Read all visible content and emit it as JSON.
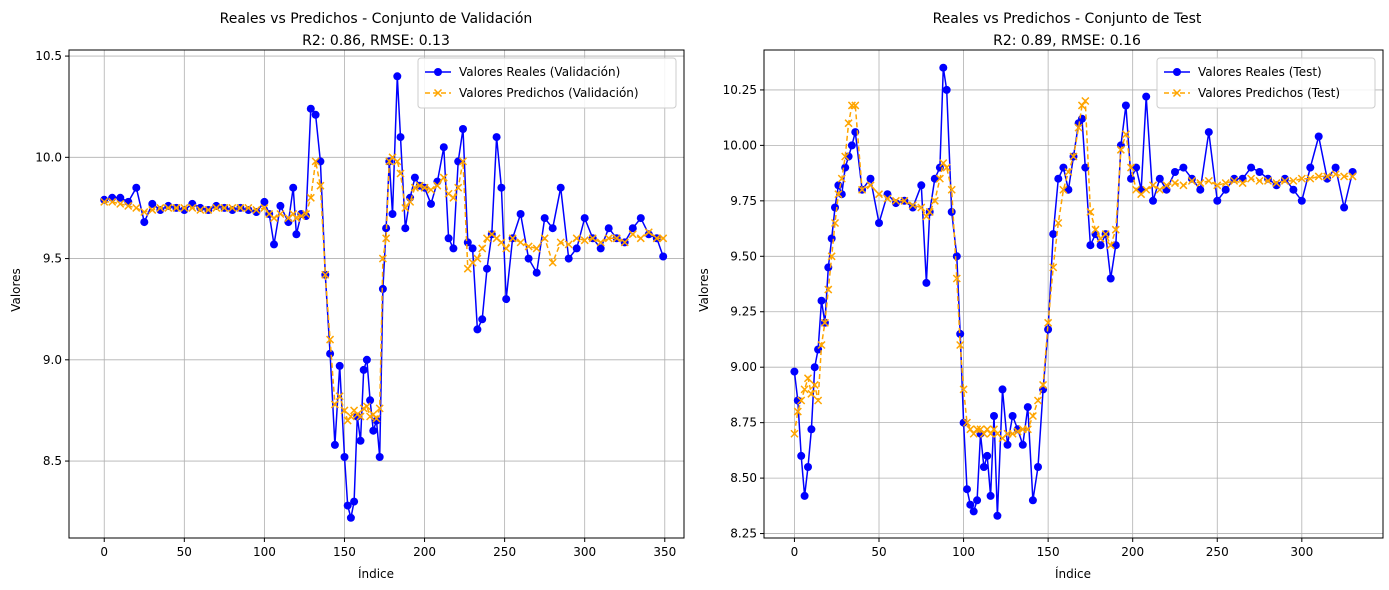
{
  "colors": {
    "real": "#0000ff",
    "pred": "#ffa500",
    "grid": "#b0b0b0",
    "frame": "#000000"
  },
  "chart_data": [
    {
      "type": "line",
      "title": "Reales vs Predichos - Conjunto de Validación",
      "subtitle": "R2: 0.86, RMSE: 0.13",
      "xlabel": "Índice",
      "ylabel": "Valores",
      "xlim": [
        -22,
        362
      ],
      "ylim": [
        8.12,
        10.53
      ],
      "xticks": [
        0,
        50,
        100,
        150,
        200,
        250,
        300,
        350
      ],
      "yticks": [
        8.5,
        9.0,
        9.5,
        10.0,
        10.5
      ],
      "ytick_labels": [
        "8.5",
        "9.0",
        "9.5",
        "10.0",
        "10.5"
      ],
      "grid": true,
      "legend_position": "upper right",
      "series": [
        {
          "name": "Valores Reales (Validación)",
          "marker": "circle",
          "style": "solid",
          "x": [
            0,
            5,
            10,
            15,
            20,
            25,
            30,
            35,
            40,
            45,
            50,
            55,
            60,
            65,
            70,
            75,
            80,
            85,
            90,
            95,
            100,
            103,
            106,
            110,
            115,
            118,
            120,
            123,
            126,
            129,
            132,
            135,
            138,
            141,
            144,
            147,
            150,
            152,
            154,
            156,
            158,
            160,
            162,
            164,
            166,
            168,
            170,
            172,
            174,
            176,
            178,
            180,
            183,
            185,
            188,
            191,
            194,
            197,
            200,
            204,
            208,
            212,
            215,
            218,
            221,
            224,
            227,
            230,
            233,
            236,
            239,
            242,
            245,
            248,
            251,
            255,
            260,
            265,
            270,
            275,
            280,
            285,
            290,
            295,
            300,
            305,
            310,
            315,
            320,
            325,
            330,
            335,
            340,
            345,
            349
          ],
          "y": [
            9.79,
            9.8,
            9.8,
            9.78,
            9.85,
            9.68,
            9.77,
            9.74,
            9.76,
            9.75,
            9.74,
            9.77,
            9.75,
            9.74,
            9.76,
            9.75,
            9.74,
            9.75,
            9.74,
            9.73,
            9.78,
            9.72,
            9.57,
            9.76,
            9.68,
            9.85,
            9.62,
            9.72,
            9.71,
            10.24,
            10.21,
            9.98,
            9.42,
            9.03,
            8.58,
            8.97,
            8.52,
            8.28,
            8.22,
            8.3,
            8.72,
            8.6,
            8.95,
            9.0,
            8.8,
            8.65,
            8.7,
            8.52,
            9.35,
            9.65,
            9.98,
            9.72,
            10.4,
            10.1,
            9.65,
            9.8,
            9.9,
            9.86,
            9.85,
            9.77,
            9.88,
            10.05,
            9.6,
            9.55,
            9.98,
            10.14,
            9.58,
            9.55,
            9.15,
            9.2,
            9.45,
            9.62,
            10.1,
            9.85,
            9.3,
            9.6,
            9.72,
            9.5,
            9.43,
            9.7,
            9.65,
            9.85,
            9.5,
            9.55,
            9.7,
            9.6,
            9.55,
            9.65,
            9.6,
            9.58,
            9.65,
            9.7,
            9.62,
            9.6,
            9.51
          ]
        },
        {
          "name": "Valores Predichos (Validación)",
          "marker": "x",
          "style": "dashed",
          "x": [
            0,
            5,
            10,
            15,
            20,
            25,
            30,
            35,
            40,
            45,
            50,
            55,
            60,
            65,
            70,
            75,
            80,
            85,
            90,
            95,
            100,
            103,
            106,
            110,
            115,
            118,
            120,
            123,
            126,
            129,
            132,
            135,
            138,
            141,
            144,
            147,
            150,
            152,
            154,
            156,
            158,
            160,
            162,
            164,
            166,
            168,
            170,
            172,
            174,
            176,
            178,
            180,
            183,
            185,
            188,
            191,
            194,
            197,
            200,
            204,
            208,
            212,
            215,
            218,
            221,
            224,
            227,
            230,
            233,
            236,
            239,
            242,
            245,
            248,
            251,
            255,
            260,
            265,
            270,
            275,
            280,
            285,
            290,
            295,
            300,
            305,
            310,
            315,
            320,
            325,
            330,
            335,
            340,
            345,
            349
          ],
          "y": [
            9.78,
            9.78,
            9.77,
            9.76,
            9.75,
            9.73,
            9.74,
            9.75,
            9.75,
            9.75,
            9.75,
            9.75,
            9.74,
            9.74,
            9.75,
            9.75,
            9.75,
            9.75,
            9.75,
            9.74,
            9.75,
            9.72,
            9.7,
            9.72,
            9.7,
            9.72,
            9.7,
            9.71,
            9.72,
            9.8,
            9.98,
            9.86,
            9.42,
            9.1,
            8.78,
            8.82,
            8.75,
            8.7,
            8.72,
            8.75,
            8.73,
            8.72,
            8.76,
            8.77,
            8.72,
            8.73,
            8.71,
            8.76,
            9.5,
            9.6,
            9.98,
            10.0,
            9.98,
            9.92,
            9.75,
            9.78,
            9.85,
            9.86,
            9.85,
            9.84,
            9.86,
            9.9,
            9.82,
            9.8,
            9.85,
            9.98,
            9.45,
            9.48,
            9.5,
            9.55,
            9.6,
            9.62,
            9.6,
            9.58,
            9.55,
            9.6,
            9.58,
            9.56,
            9.55,
            9.6,
            9.48,
            9.58,
            9.57,
            9.6,
            9.59,
            9.6,
            9.58,
            9.6,
            9.6,
            9.58,
            9.62,
            9.6,
            9.63,
            9.6,
            9.6
          ]
        }
      ]
    },
    {
      "type": "line",
      "title": "Reales vs Predichos - Conjunto de Test",
      "subtitle": "R2: 0.89, RMSE: 0.16",
      "xlabel": "Índice",
      "ylabel": "Valores",
      "xlim": [
        -18,
        348
      ],
      "ylim": [
        8.23,
        10.43
      ],
      "xticks": [
        0,
        50,
        100,
        150,
        200,
        250,
        300
      ],
      "yticks": [
        8.25,
        8.5,
        8.75,
        9.0,
        9.25,
        9.5,
        9.75,
        10.0,
        10.25
      ],
      "ytick_labels": [
        "8.25",
        "8.50",
        "8.75",
        "9.00",
        "9.25",
        "9.50",
        "9.75",
        "10.00",
        "10.25"
      ],
      "grid": true,
      "legend_position": "upper right",
      "series": [
        {
          "name": "Valores Reales (Test)",
          "marker": "circle",
          "style": "solid",
          "x": [
            0,
            2,
            4,
            6,
            8,
            10,
            12,
            14,
            16,
            18,
            20,
            22,
            24,
            26,
            28,
            30,
            32,
            34,
            36,
            40,
            45,
            50,
            55,
            60,
            65,
            70,
            75,
            78,
            80,
            83,
            86,
            88,
            90,
            93,
            96,
            98,
            100,
            102,
            104,
            106,
            108,
            110,
            112,
            114,
            116,
            118,
            120,
            123,
            126,
            129,
            132,
            135,
            138,
            141,
            144,
            147,
            150,
            153,
            156,
            159,
            162,
            165,
            168,
            170,
            172,
            175,
            178,
            181,
            184,
            187,
            190,
            193,
            196,
            199,
            202,
            205,
            208,
            212,
            216,
            220,
            225,
            230,
            235,
            240,
            245,
            250,
            255,
            260,
            265,
            270,
            275,
            280,
            285,
            290,
            295,
            300,
            305,
            310,
            315,
            320,
            325,
            330
          ],
          "y": [
            8.98,
            8.85,
            8.6,
            8.42,
            8.55,
            8.72,
            9.0,
            9.08,
            9.3,
            9.2,
            9.45,
            9.58,
            9.72,
            9.82,
            9.78,
            9.9,
            9.95,
            10.0,
            10.06,
            9.8,
            9.85,
            9.65,
            9.78,
            9.74,
            9.75,
            9.72,
            9.82,
            9.38,
            9.7,
            9.85,
            9.9,
            10.35,
            10.25,
            9.7,
            9.5,
            9.15,
            8.75,
            8.45,
            8.38,
            8.35,
            8.4,
            8.7,
            8.55,
            8.6,
            8.42,
            8.78,
            8.33,
            8.9,
            8.65,
            8.78,
            8.72,
            8.65,
            8.82,
            8.4,
            8.55,
            8.9,
            9.17,
            9.6,
            9.85,
            9.9,
            9.8,
            9.95,
            10.1,
            10.12,
            9.9,
            9.55,
            9.6,
            9.55,
            9.6,
            9.4,
            9.55,
            10.0,
            10.18,
            9.85,
            9.9,
            9.8,
            10.22,
            9.75,
            9.85,
            9.8,
            9.88,
            9.9,
            9.85,
            9.8,
            10.06,
            9.75,
            9.8,
            9.85,
            9.85,
            9.9,
            9.88,
            9.85,
            9.82,
            9.85,
            9.8,
            9.75,
            9.9,
            10.04,
            9.85,
            9.9,
            9.72,
            9.88
          ]
        },
        {
          "name": "Valores Predichos (Test)",
          "marker": "x",
          "style": "dashed",
          "x": [
            0,
            2,
            4,
            6,
            8,
            10,
            12,
            14,
            16,
            18,
            20,
            22,
            24,
            26,
            28,
            30,
            32,
            34,
            36,
            40,
            45,
            50,
            55,
            60,
            65,
            70,
            75,
            78,
            80,
            83,
            86,
            88,
            90,
            93,
            96,
            98,
            100,
            102,
            104,
            106,
            108,
            110,
            112,
            114,
            116,
            118,
            120,
            123,
            126,
            129,
            132,
            135,
            138,
            141,
            144,
            147,
            150,
            153,
            156,
            159,
            162,
            165,
            168,
            170,
            172,
            175,
            178,
            181,
            184,
            187,
            190,
            193,
            196,
            199,
            202,
            205,
            208,
            212,
            216,
            220,
            225,
            230,
            235,
            240,
            245,
            250,
            255,
            260,
            265,
            270,
            275,
            280,
            285,
            290,
            295,
            300,
            305,
            310,
            315,
            320,
            325,
            330
          ],
          "y": [
            8.7,
            8.8,
            8.85,
            8.9,
            8.95,
            8.88,
            8.92,
            8.85,
            9.1,
            9.2,
            9.35,
            9.5,
            9.65,
            9.78,
            9.85,
            9.95,
            10.1,
            10.18,
            10.18,
            9.8,
            9.82,
            9.78,
            9.76,
            9.75,
            9.75,
            9.73,
            9.72,
            9.68,
            9.7,
            9.75,
            9.85,
            9.92,
            9.9,
            9.8,
            9.4,
            9.1,
            8.9,
            8.75,
            8.72,
            8.7,
            8.72,
            8.72,
            8.7,
            8.72,
            8.7,
            8.72,
            8.7,
            8.68,
            8.7,
            8.7,
            8.71,
            8.72,
            8.72,
            8.78,
            8.85,
            8.92,
            9.2,
            9.45,
            9.65,
            9.8,
            9.88,
            9.95,
            10.08,
            10.18,
            10.2,
            9.7,
            9.62,
            9.58,
            9.6,
            9.55,
            9.62,
            9.98,
            10.05,
            9.9,
            9.8,
            9.78,
            9.8,
            9.82,
            9.8,
            9.82,
            9.83,
            9.82,
            9.84,
            9.83,
            9.84,
            9.82,
            9.83,
            9.84,
            9.83,
            9.85,
            9.84,
            9.84,
            9.83,
            9.84,
            9.84,
            9.85,
            9.85,
            9.86,
            9.86,
            9.87,
            9.86,
            9.86
          ]
        }
      ]
    }
  ]
}
